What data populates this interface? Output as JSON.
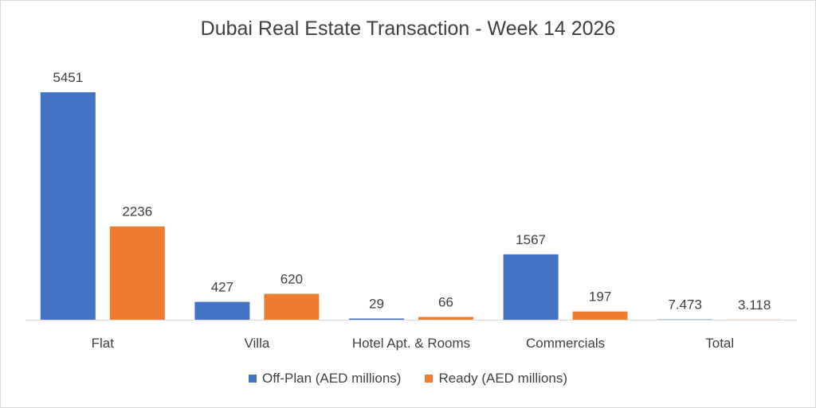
{
  "chart_data": {
    "type": "bar",
    "title": "Dubai Real Estate Transaction - Week 14 2026",
    "categories": [
      "Flat",
      "Villa",
      "Hotel Apt. & Rooms",
      "Commercials",
      "Total"
    ],
    "series": [
      {
        "name": "Off-Plan (AED millions)",
        "color": "#4472c4",
        "values": [
          5451,
          427,
          29,
          1567,
          7.473
        ],
        "labels": [
          "5451",
          "427",
          "29",
          "1567",
          "7.473"
        ]
      },
      {
        "name": "Ready (AED millions)",
        "color": "#ed7d31",
        "values": [
          2236,
          620,
          66,
          197,
          3.118
        ],
        "labels": [
          "2236",
          "620",
          "66",
          "197",
          "3.118"
        ]
      }
    ],
    "ylim": [
      0,
      5451
    ],
    "xlabel": "",
    "ylabel": "",
    "grid": false,
    "legend_position": "bottom"
  }
}
